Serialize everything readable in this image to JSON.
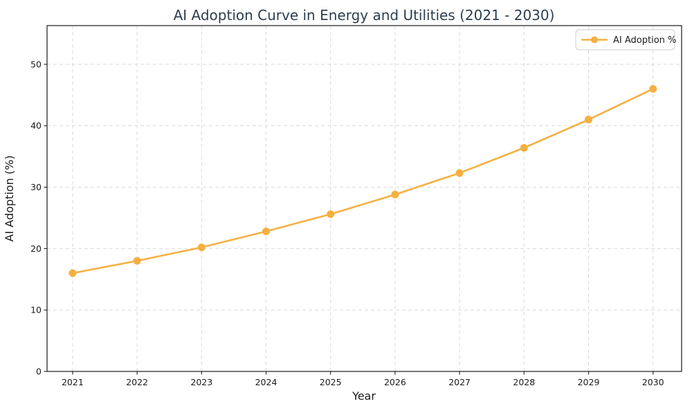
{
  "chart_data": {
    "type": "line",
    "title": "AI Adoption Curve in Energy and Utilities (2021 - 2030)",
    "xlabel": "Year",
    "ylabel": "AI Adoption (%)",
    "categories": [
      "2021",
      "2022",
      "2023",
      "2024",
      "2025",
      "2026",
      "2027",
      "2028",
      "2029",
      "2030"
    ],
    "series": [
      {
        "name": "AI Adoption %",
        "values": [
          16.0,
          18.0,
          20.2,
          22.8,
          25.6,
          28.8,
          32.3,
          36.4,
          41.0,
          46.0
        ],
        "color": "#F5B041",
        "marker": "circle"
      }
    ],
    "ylim": [
      0,
      56.3
    ],
    "yticks": [
      0,
      10,
      20,
      30,
      40,
      50
    ],
    "grid": true,
    "grid_style": "dashed",
    "legend": {
      "label": "AI Adoption %",
      "position": "upper-right"
    }
  },
  "style_colors": {
    "line": "#F5B041",
    "title_text": "#2C3E50",
    "grid": "#D9D9D9",
    "spine": "#2B2B2B",
    "tick_text": "#1A1A1A",
    "legend_border": "#CCCCCC",
    "legend_background": "#FFFFFF",
    "plot_background": "#FFFFFF"
  }
}
